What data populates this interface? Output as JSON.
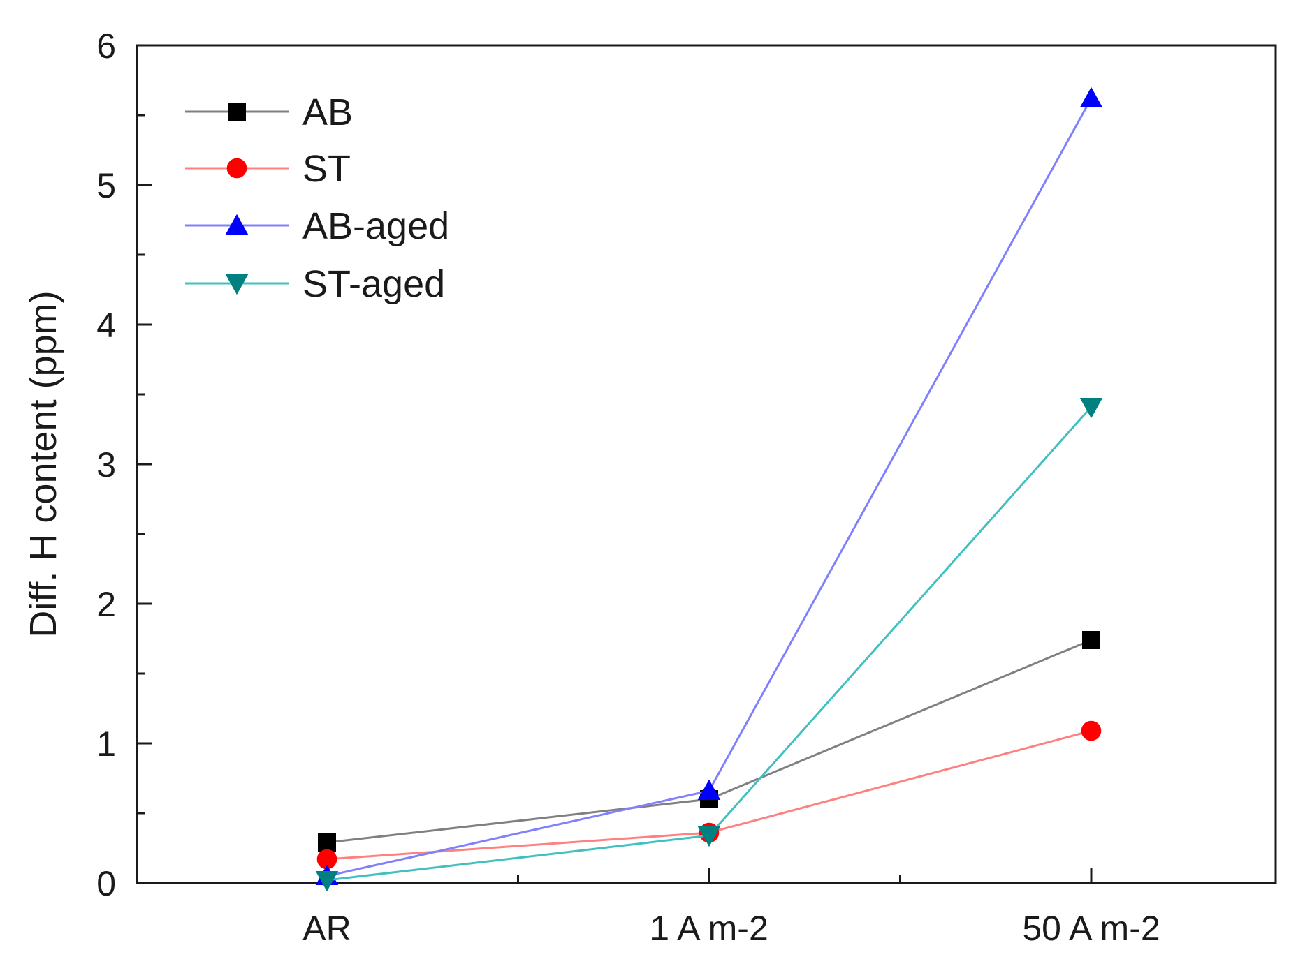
{
  "chart_data": {
    "type": "line",
    "title": "",
    "xlabel": "",
    "ylabel": "Diff. H content (ppm)",
    "categories": [
      "AR",
      "1 A m-2",
      "50 A m-2"
    ],
    "ylim": [
      0,
      6
    ],
    "yticks": [
      "0",
      "1",
      "2",
      "3",
      "4",
      "5",
      "6"
    ],
    "grid": false,
    "legend_position": "top-left",
    "series": [
      {
        "name": "AB",
        "values": [
          0.29,
          0.6,
          1.74
        ],
        "line_color": "#808080",
        "marker_color": "#000000",
        "marker": "square"
      },
      {
        "name": "ST",
        "values": [
          0.17,
          0.36,
          1.09
        ],
        "line_color": "#ff8080",
        "marker_color": "#ff0000",
        "marker": "circle"
      },
      {
        "name": "AB-aged",
        "values": [
          0.05,
          0.66,
          5.62
        ],
        "line_color": "#8080ff",
        "marker_color": "#0000ff",
        "marker": "triangle-up"
      },
      {
        "name": "ST-aged",
        "values": [
          0.02,
          0.34,
          3.41
        ],
        "line_color": "#40c0c0",
        "marker_color": "#008080",
        "marker": "triangle-down"
      }
    ]
  }
}
